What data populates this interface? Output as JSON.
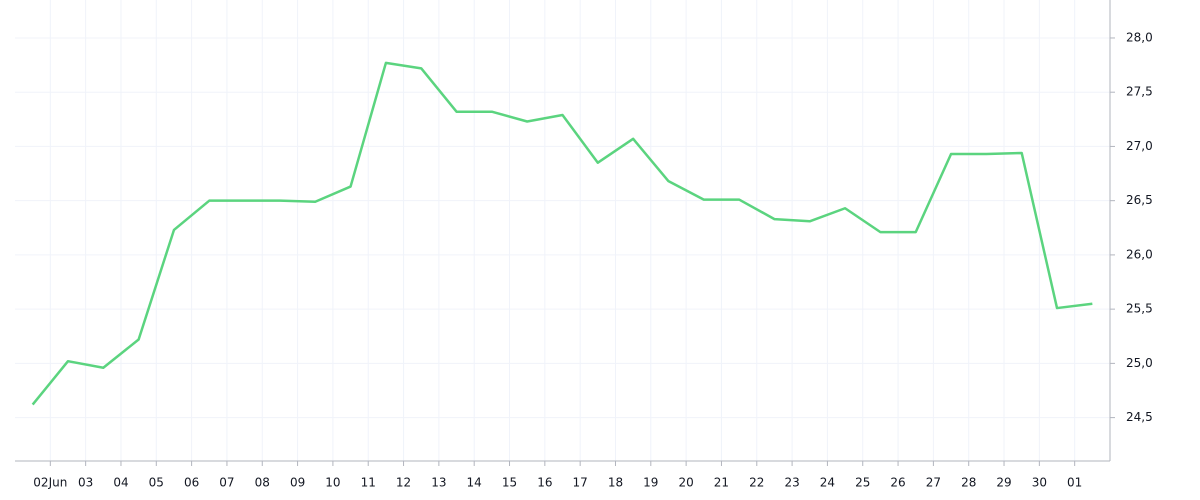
{
  "chart_data": {
    "type": "line",
    "x": [
      0,
      1,
      2,
      3,
      4,
      5,
      6,
      7,
      8,
      9,
      10,
      11,
      12,
      13,
      14,
      15,
      16,
      17,
      18,
      19,
      20,
      21,
      22,
      23,
      24,
      25,
      26,
      27,
      28,
      29,
      30
    ],
    "series": [
      {
        "color": "#5bd47f",
        "values": [
          24.62,
          25.02,
          24.96,
          25.22,
          26.23,
          26.5,
          26.5,
          26.5,
          26.49,
          26.63,
          27.77,
          27.72,
          27.32,
          27.32,
          27.23,
          27.29,
          26.85,
          27.07,
          26.68,
          26.51,
          26.51,
          26.33,
          26.31,
          26.43,
          26.21,
          26.21,
          26.93,
          26.93,
          26.94,
          25.51,
          25.55
        ]
      }
    ],
    "xlim": [
      -0.5,
      30.5
    ],
    "xticks": [
      {
        "value": 0.5,
        "label": "02Jun"
      },
      {
        "value": 1.5,
        "label": "03"
      },
      {
        "value": 2.5,
        "label": "04"
      },
      {
        "value": 3.5,
        "label": "05"
      },
      {
        "value": 4.5,
        "label": "06"
      },
      {
        "value": 5.5,
        "label": "07"
      },
      {
        "value": 6.5,
        "label": "08"
      },
      {
        "value": 7.5,
        "label": "09"
      },
      {
        "value": 8.5,
        "label": "10"
      },
      {
        "value": 9.5,
        "label": "11"
      },
      {
        "value": 10.5,
        "label": "12"
      },
      {
        "value": 11.5,
        "label": "13"
      },
      {
        "value": 12.5,
        "label": "14"
      },
      {
        "value": 13.5,
        "label": "15"
      },
      {
        "value": 14.5,
        "label": "16"
      },
      {
        "value": 15.5,
        "label": "17"
      },
      {
        "value": 16.5,
        "label": "18"
      },
      {
        "value": 17.5,
        "label": "19"
      },
      {
        "value": 18.5,
        "label": "20"
      },
      {
        "value": 19.5,
        "label": "21"
      },
      {
        "value": 20.5,
        "label": "22"
      },
      {
        "value": 21.5,
        "label": "23"
      },
      {
        "value": 22.5,
        "label": "24"
      },
      {
        "value": 23.5,
        "label": "25"
      },
      {
        "value": 24.5,
        "label": "26"
      },
      {
        "value": 25.5,
        "label": "27"
      },
      {
        "value": 26.5,
        "label": "28"
      },
      {
        "value": 27.5,
        "label": "29"
      },
      {
        "value": 28.5,
        "label": "30"
      },
      {
        "value": 29.5,
        "label": "01"
      }
    ],
    "ylim": [
      24.1,
      28.35
    ],
    "yticks": [
      {
        "value": 24.5,
        "label": "24,5"
      },
      {
        "value": 25,
        "label": "25,0"
      },
      {
        "value": 25.5,
        "label": "25,5"
      },
      {
        "value": 26,
        "label": "26,0"
      },
      {
        "value": 26.5,
        "label": "26,5"
      },
      {
        "value": 27,
        "label": "27,0"
      },
      {
        "value": 27.5,
        "label": "27,5"
      },
      {
        "value": 28,
        "label": "28,0"
      }
    ],
    "grid": true
  }
}
